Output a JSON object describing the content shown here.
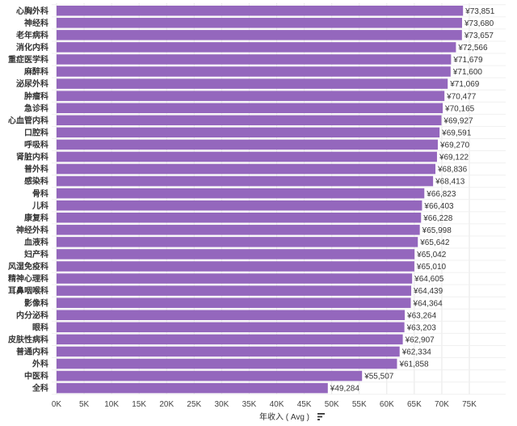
{
  "chart_data": {
    "type": "bar",
    "orientation": "horizontal",
    "categories": [
      "心胸外科",
      "神经科",
      "老年病科",
      "消化内科",
      "重症医学科",
      "麻醉科",
      "泌尿外科",
      "肿瘤科",
      "急诊科",
      "心血管内科",
      "口腔科",
      "呼吸科",
      "肾脏内科",
      "普外科",
      "感染科",
      "骨科",
      "儿科",
      "康复科",
      "神经外科",
      "血液科",
      "妇产科",
      "风湿免疫科",
      "精神心理科",
      "耳鼻咽喉科",
      "影像科",
      "内分泌科",
      "眼科",
      "皮肤性病科",
      "普通内科",
      "外科",
      "中医科",
      "全科"
    ],
    "values": [
      73851,
      73680,
      73657,
      72566,
      71679,
      71600,
      71069,
      70477,
      70165,
      69927,
      69591,
      69270,
      69122,
      68836,
      68413,
      66823,
      66403,
      66228,
      65998,
      65642,
      65042,
      65010,
      64605,
      64439,
      64364,
      63264,
      63203,
      62907,
      62334,
      61858,
      55507,
      49284
    ],
    "value_labels": [
      "¥73,851",
      "¥73,680",
      "¥73,657",
      "¥72,566",
      "¥71,679",
      "¥71,600",
      "¥71,069",
      "¥70,477",
      "¥70,165",
      "¥69,927",
      "¥69,591",
      "¥69,270",
      "¥69,122",
      "¥68,836",
      "¥68,413",
      "¥66,823",
      "¥66,403",
      "¥66,228",
      "¥65,998",
      "¥65,642",
      "¥65,042",
      "¥65,010",
      "¥64,605",
      "¥64,439",
      "¥64,364",
      "¥63,264",
      "¥63,203",
      "¥62,907",
      "¥62,334",
      "¥61,858",
      "¥55,507",
      "¥49,284"
    ],
    "x_ticks": [
      0,
      5000,
      10000,
      15000,
      20000,
      25000,
      30000,
      35000,
      40000,
      45000,
      50000,
      55000,
      60000,
      65000,
      70000,
      75000
    ],
    "x_tick_labels": [
      "0K",
      "5K",
      "10K",
      "15K",
      "20K",
      "25K",
      "30K",
      "35K",
      "40K",
      "45K",
      "50K",
      "55K",
      "60K",
      "65K",
      "70K",
      "75K"
    ],
    "xlim": [
      0,
      80000
    ],
    "xlabel": "年收入 ( Avg )",
    "grid": true,
    "bar_color": "#9467bd",
    "grid_color": "#e6e6e6"
  },
  "icons": {
    "sort": "sort-descending-icon"
  }
}
